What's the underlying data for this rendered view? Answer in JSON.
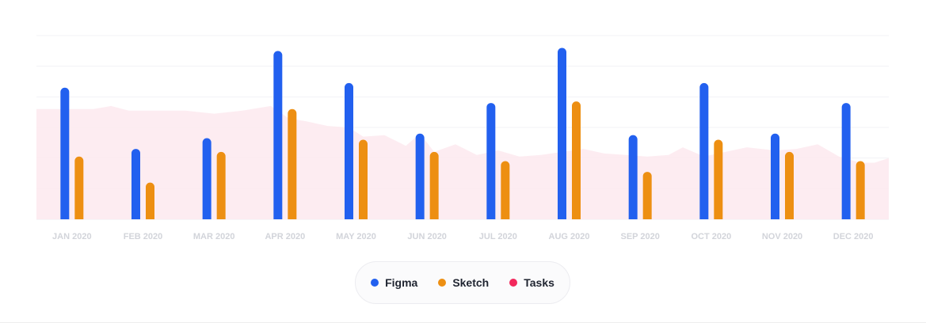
{
  "chart_data": {
    "type": "bar",
    "categories": [
      "JAN 2020",
      "FEB 2020",
      "MAR 2020",
      "APR 2020",
      "MAY 2020",
      "JUN 2020",
      "JUL 2020",
      "AUG 2020",
      "SEP 2020",
      "OCT 2020",
      "NOV 2020",
      "DEC 2020"
    ],
    "ylim": [
      0,
      60
    ],
    "grid": true,
    "legend_position": "bottom-center",
    "series": [
      {
        "name": "Figma",
        "type": "bar",
        "color": "#2260ef",
        "values": [
          43,
          23,
          26.5,
          55,
          44.5,
          28,
          38,
          56,
          27.5,
          44.5,
          28,
          38
        ]
      },
      {
        "name": "Sketch",
        "type": "bar",
        "color": "#ed8f12",
        "values": [
          20.5,
          12,
          22,
          36,
          26,
          22,
          19,
          38.5,
          15.5,
          26,
          22,
          19
        ]
      },
      {
        "name": "Tasks",
        "type": "area",
        "color": "#fde9ee",
        "x": [
          0,
          0.3,
          0.55,
          0.8,
          1.2,
          1.6,
          2.0,
          2.4,
          2.8,
          3.05,
          3.3,
          3.6,
          3.9,
          4.1,
          4.4,
          4.7,
          4.9,
          5.1,
          5.4,
          5.7,
          6.0,
          6.3,
          6.6,
          6.9,
          7.2,
          7.5,
          7.8,
          8.1,
          8.4,
          8.6,
          8.9,
          9.2,
          9.5,
          9.9,
          10.2,
          10.5,
          10.8,
          11.1,
          11.3,
          11.5
        ],
        "values": [
          36,
          36,
          37,
          35.5,
          35.5,
          35.5,
          34.5,
          35.5,
          37,
          33,
          32,
          30.5,
          30,
          27,
          27.5,
          24,
          28,
          22,
          24.5,
          21,
          22.5,
          20.5,
          21,
          22,
          23,
          21.5,
          21,
          20.5,
          21,
          23.5,
          20.5,
          22,
          23.5,
          22.5,
          23,
          24.5,
          20.5,
          18.5,
          18.5,
          20
        ]
      }
    ]
  },
  "legend": [
    {
      "label": "Figma",
      "color": "#2260ef"
    },
    {
      "label": "Sketch",
      "color": "#ed8f12"
    },
    {
      "label": "Tasks",
      "color": "#f2285c"
    }
  ]
}
